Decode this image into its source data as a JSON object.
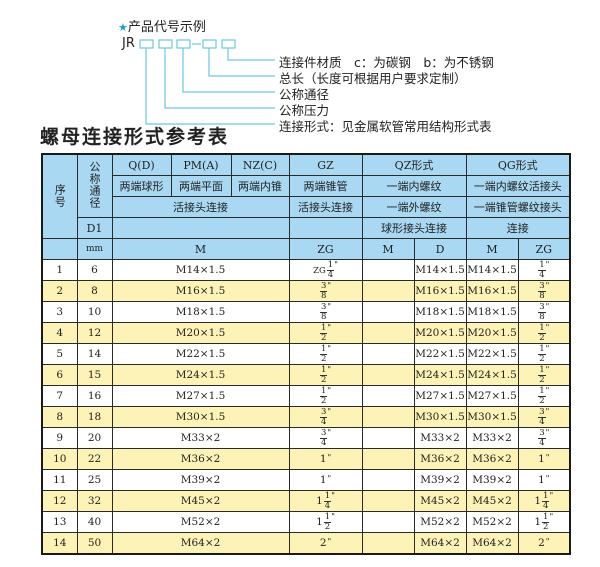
{
  "example": {
    "title": "产品代号示例",
    "star_icon": "star-icon",
    "code_prefix": "JR",
    "labels": [
      "连接件材质　c：为碳钢　b：为不锈钢",
      "总长（长度可根据用户要求定制）",
      "公称通径",
      "公称压力",
      "连接形式：见金属软管常用结构形式表"
    ],
    "accent": "#1e9ad6"
  },
  "table_title": "螺母连接形式参考表",
  "colors": {
    "header": "#a9d9f2",
    "alt_row": "#fdf3b6"
  },
  "header": {
    "seq": "序号",
    "nominal": "公称通径",
    "q": "Q(D)",
    "pm": "PM(A)",
    "nz": "NZ(C)",
    "gz": "GZ",
    "qz": "QZ形式",
    "qg": "QG形式",
    "q_desc": "两端球形",
    "pm_desc": "两端平面",
    "nz_desc": "两端内锥",
    "gz_desc": "两端锥管",
    "qz_desc1": "一端内螺纹",
    "qg_desc1": "一端内螺纹活接头",
    "union": "活接头连接",
    "gz_union": "活接头连接",
    "qz_desc2": "一端外螺纹",
    "qg_desc2": "一端锥管螺纹接头",
    "d1": "D1",
    "qz_desc3": "球形接头连接",
    "qg_desc3": "连接",
    "mm": "mm",
    "m": "M",
    "zg": "ZG",
    "qz_m": "M",
    "qz_d": "D",
    "qg_m": "M",
    "qg_zg": "ZG"
  },
  "rows": [
    {
      "no": "1",
      "dn": "6",
      "m": "M14×1.5",
      "qz_m": "",
      "qz_d": "M14×1.5",
      "qg_m": "M14×1.5",
      "gz": {
        "prefix": "ZG",
        "whole": "",
        "num": "1",
        "den": "4",
        "unit": "\""
      },
      "qg_zg": {
        "prefix": "",
        "whole": "",
        "num": "1",
        "den": "4",
        "unit": "\""
      }
    },
    {
      "no": "2",
      "dn": "8",
      "m": "M16×1.5",
      "qz_m": "",
      "qz_d": "M16×1.5",
      "qg_m": "M16×1.5",
      "gz": {
        "prefix": "",
        "whole": "",
        "num": "3",
        "den": "8",
        "unit": "\""
      },
      "qg_zg": {
        "prefix": "",
        "whole": "",
        "num": "3",
        "den": "8",
        "unit": "\""
      }
    },
    {
      "no": "3",
      "dn": "10",
      "m": "M18×1.5",
      "qz_m": "",
      "qz_d": "M18×1.5",
      "qg_m": "M18×1.5",
      "gz": {
        "prefix": "",
        "whole": "",
        "num": "3",
        "den": "8",
        "unit": "\""
      },
      "qg_zg": {
        "prefix": "",
        "whole": "",
        "num": "3",
        "den": "8",
        "unit": "\""
      }
    },
    {
      "no": "4",
      "dn": "12",
      "m": "M20×1.5",
      "qz_m": "",
      "qz_d": "M20×1.5",
      "qg_m": "M20×1.5",
      "gz": {
        "prefix": "",
        "whole": "",
        "num": "1",
        "den": "2",
        "unit": "\""
      },
      "qg_zg": {
        "prefix": "",
        "whole": "",
        "num": "1",
        "den": "2",
        "unit": "\""
      }
    },
    {
      "no": "5",
      "dn": "14",
      "m": "M22×1.5",
      "qz_m": "",
      "qz_d": "M22×1.5",
      "qg_m": "M22×1.5",
      "gz": {
        "prefix": "",
        "whole": "",
        "num": "1",
        "den": "2",
        "unit": "\""
      },
      "qg_zg": {
        "prefix": "",
        "whole": "",
        "num": "1",
        "den": "2",
        "unit": "\""
      }
    },
    {
      "no": "6",
      "dn": "15",
      "m": "M24×1.5",
      "qz_m": "",
      "qz_d": "M24×1.5",
      "qg_m": "M24×1.5",
      "gz": {
        "prefix": "",
        "whole": "",
        "num": "1",
        "den": "2",
        "unit": "\""
      },
      "qg_zg": {
        "prefix": "",
        "whole": "",
        "num": "1",
        "den": "2",
        "unit": "\""
      }
    },
    {
      "no": "7",
      "dn": "16",
      "m": "M27×1.5",
      "qz_m": "",
      "qz_d": "M27×1.5",
      "qg_m": "M27×1.5",
      "gz": {
        "prefix": "",
        "whole": "",
        "num": "1",
        "den": "2",
        "unit": "\""
      },
      "qg_zg": {
        "prefix": "",
        "whole": "",
        "num": "1",
        "den": "2",
        "unit": "\""
      }
    },
    {
      "no": "8",
      "dn": "18",
      "m": "M30×1.5",
      "qz_m": "",
      "qz_d": "M30×1.5",
      "qg_m": "M30×1.5",
      "gz": {
        "prefix": "",
        "whole": "",
        "num": "3",
        "den": "4",
        "unit": "\""
      },
      "qg_zg": {
        "prefix": "",
        "whole": "",
        "num": "3",
        "den": "4",
        "unit": "\""
      }
    },
    {
      "no": "9",
      "dn": "20",
      "m": "M33×2",
      "qz_m": "",
      "qz_d": "M33×2",
      "qg_m": "M33×2",
      "gz": {
        "prefix": "",
        "whole": "",
        "num": "3",
        "den": "4",
        "unit": "\""
      },
      "qg_zg": {
        "prefix": "",
        "whole": "",
        "num": "3",
        "den": "4",
        "unit": "\""
      }
    },
    {
      "no": "10",
      "dn": "22",
      "m": "M36×2",
      "qz_m": "",
      "qz_d": "M36×2",
      "qg_m": "M36×2",
      "gz": {
        "prefix": "",
        "whole": "1",
        "num": "",
        "den": "",
        "unit": "\""
      },
      "qg_zg": {
        "prefix": "",
        "whole": "1",
        "num": "",
        "den": "",
        "unit": "\""
      }
    },
    {
      "no": "11",
      "dn": "25",
      "m": "M39×2",
      "qz_m": "",
      "qz_d": "M39×2",
      "qg_m": "M39×2",
      "gz": {
        "prefix": "",
        "whole": "1",
        "num": "",
        "den": "",
        "unit": "\""
      },
      "qg_zg": {
        "prefix": "",
        "whole": "1",
        "num": "",
        "den": "",
        "unit": "\""
      }
    },
    {
      "no": "12",
      "dn": "32",
      "m": "M45×2",
      "qz_m": "",
      "qz_d": "M45×2",
      "qg_m": "M45×2",
      "gz": {
        "prefix": "",
        "whole": "1",
        "num": "1",
        "den": "4",
        "unit": "\""
      },
      "qg_zg": {
        "prefix": "",
        "whole": "1",
        "num": "1",
        "den": "4",
        "unit": "\""
      }
    },
    {
      "no": "13",
      "dn": "40",
      "m": "M52×2",
      "qz_m": "",
      "qz_d": "M52×2",
      "qg_m": "M52×2",
      "gz": {
        "prefix": "",
        "whole": "1",
        "num": "1",
        "den": "2",
        "unit": "\""
      },
      "qg_zg": {
        "prefix": "",
        "whole": "1",
        "num": "1",
        "den": "2",
        "unit": "\""
      }
    },
    {
      "no": "14",
      "dn": "50",
      "m": "M64×2",
      "qz_m": "",
      "qz_d": "M64×2",
      "qg_m": "M64×2",
      "gz": {
        "prefix": "",
        "whole": "2",
        "num": "",
        "den": "",
        "unit": "\""
      },
      "qg_zg": {
        "prefix": "",
        "whole": "2",
        "num": "",
        "den": "",
        "unit": "\""
      }
    }
  ]
}
